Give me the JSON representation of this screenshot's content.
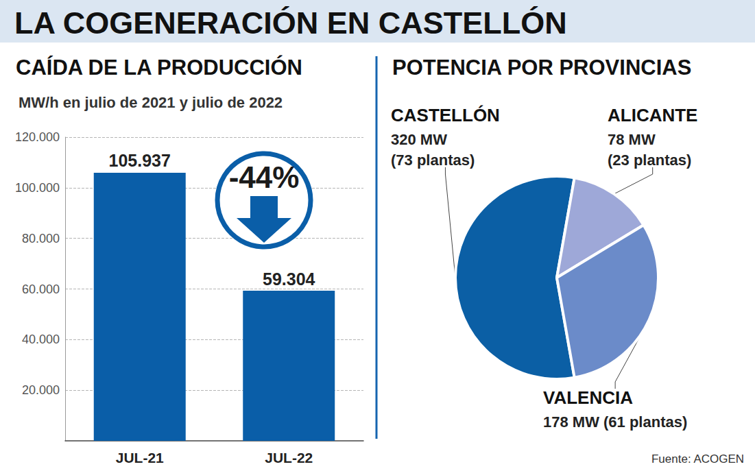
{
  "title": "LA COGENERACIÓN EN CASTELLÓN",
  "source": "Fuente: ACOGEN",
  "chart_data": [
    {
      "type": "bar",
      "title": "CAÍDA DE LA PRODUCCIÓN",
      "subtitle": "MW/h en julio de 2021 y julio de 2022",
      "categories": [
        "JUL-21",
        "JUL-22"
      ],
      "values": [
        105937,
        59304
      ],
      "value_labels": [
        "105.937",
        "59.304"
      ],
      "color": "#0a5ea8",
      "ylim": [
        0,
        120000
      ],
      "yticks": [
        {
          "value": 20000,
          "label": "20.000"
        },
        {
          "value": 40000,
          "label": "40.000"
        },
        {
          "value": 60000,
          "label": "60.000"
        },
        {
          "value": 80000,
          "label": "80.000"
        },
        {
          "value": 100000,
          "label": "100.000"
        },
        {
          "value": 120000,
          "label": "120.000"
        }
      ],
      "grid": true,
      "data_labels": true,
      "annotations": [
        "-44%"
      ]
    },
    {
      "type": "pie",
      "title": "POTENCIA POR PROVINCIAS",
      "categories": [
        "CASTELLÓN",
        "ALICANTE",
        "VALENCIA"
      ],
      "values": [
        320,
        78,
        178
      ],
      "value_labels": [
        "320 MW\n(73 plantas)",
        "78 MW\n(23 plantas)",
        "178 MW (61 plantas)"
      ],
      "colors": [
        "#0b5fa5",
        "#9ea8d8",
        "#6b8bc9"
      ],
      "data_labels": true
    }
  ]
}
